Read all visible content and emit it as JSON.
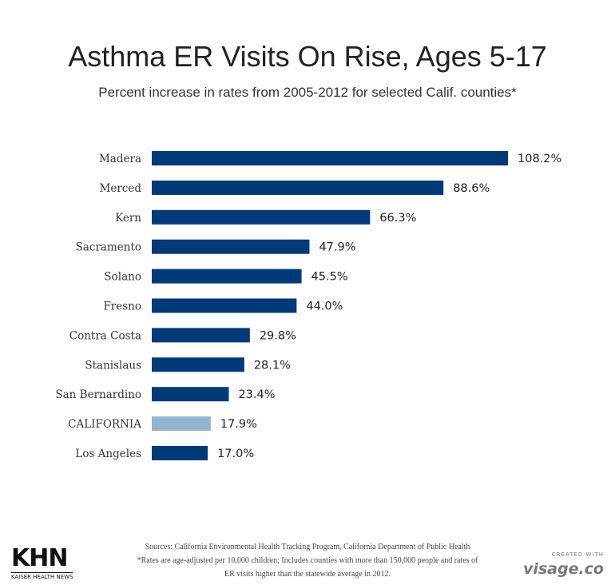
{
  "chart_data": {
    "type": "bar",
    "orientation": "horizontal",
    "title": "Asthma ER Visits On Rise, Ages 5-17",
    "subtitle": "Percent increase in rates from 2005-2012 for selected Calif. counties*",
    "categories": [
      "Madera",
      "Merced",
      "Kern",
      "Sacramento",
      "Solano",
      "Fresno",
      "Contra Costa",
      "Stanislaus",
      "San Bernardino",
      "CALIFORNIA",
      "Los Angeles"
    ],
    "values": [
      108.2,
      88.6,
      66.3,
      47.9,
      45.5,
      44.0,
      29.8,
      28.1,
      23.4,
      17.9,
      17.0
    ],
    "value_labels": [
      "108.2%",
      "88.6%",
      "66.3%",
      "47.9%",
      "45.5%",
      "44.0%",
      "29.8%",
      "28.1%",
      "23.4%",
      "17.9%",
      "17.0%"
    ],
    "highlight_category": "CALIFORNIA",
    "colors": {
      "bar": "#003a78",
      "highlight": "#93b3d0"
    },
    "xlim": [
      0,
      108.2
    ],
    "grid": false,
    "legend": "none"
  },
  "footer": {
    "sources": "Sources: California Environmental Health Tracking Program, California Department of Public Health",
    "note_line1": "*Rates are age-adjusted per 10,000 children; Includes counties with more than 150,000 people and rates of",
    "note_line2": "ER visits higher than the statewide average in 2012."
  },
  "logos": {
    "khn": "KHN",
    "khn_sub": "KAISER HEALTH NEWS",
    "visage_top": "CREATED WITH",
    "visage": "visage.co"
  }
}
